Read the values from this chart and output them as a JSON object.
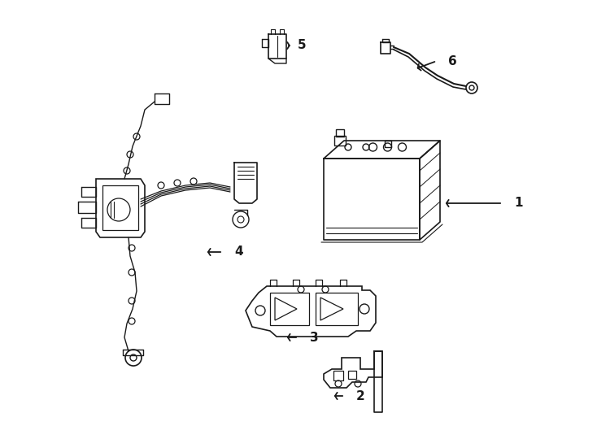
{
  "bg_color": "#ffffff",
  "line_color": "#1a1a1a",
  "line_width": 1.0,
  "fig_width": 7.34,
  "fig_height": 5.4,
  "dpi": 100,
  "label_fontsize": 11,
  "label_fontweight": "bold"
}
